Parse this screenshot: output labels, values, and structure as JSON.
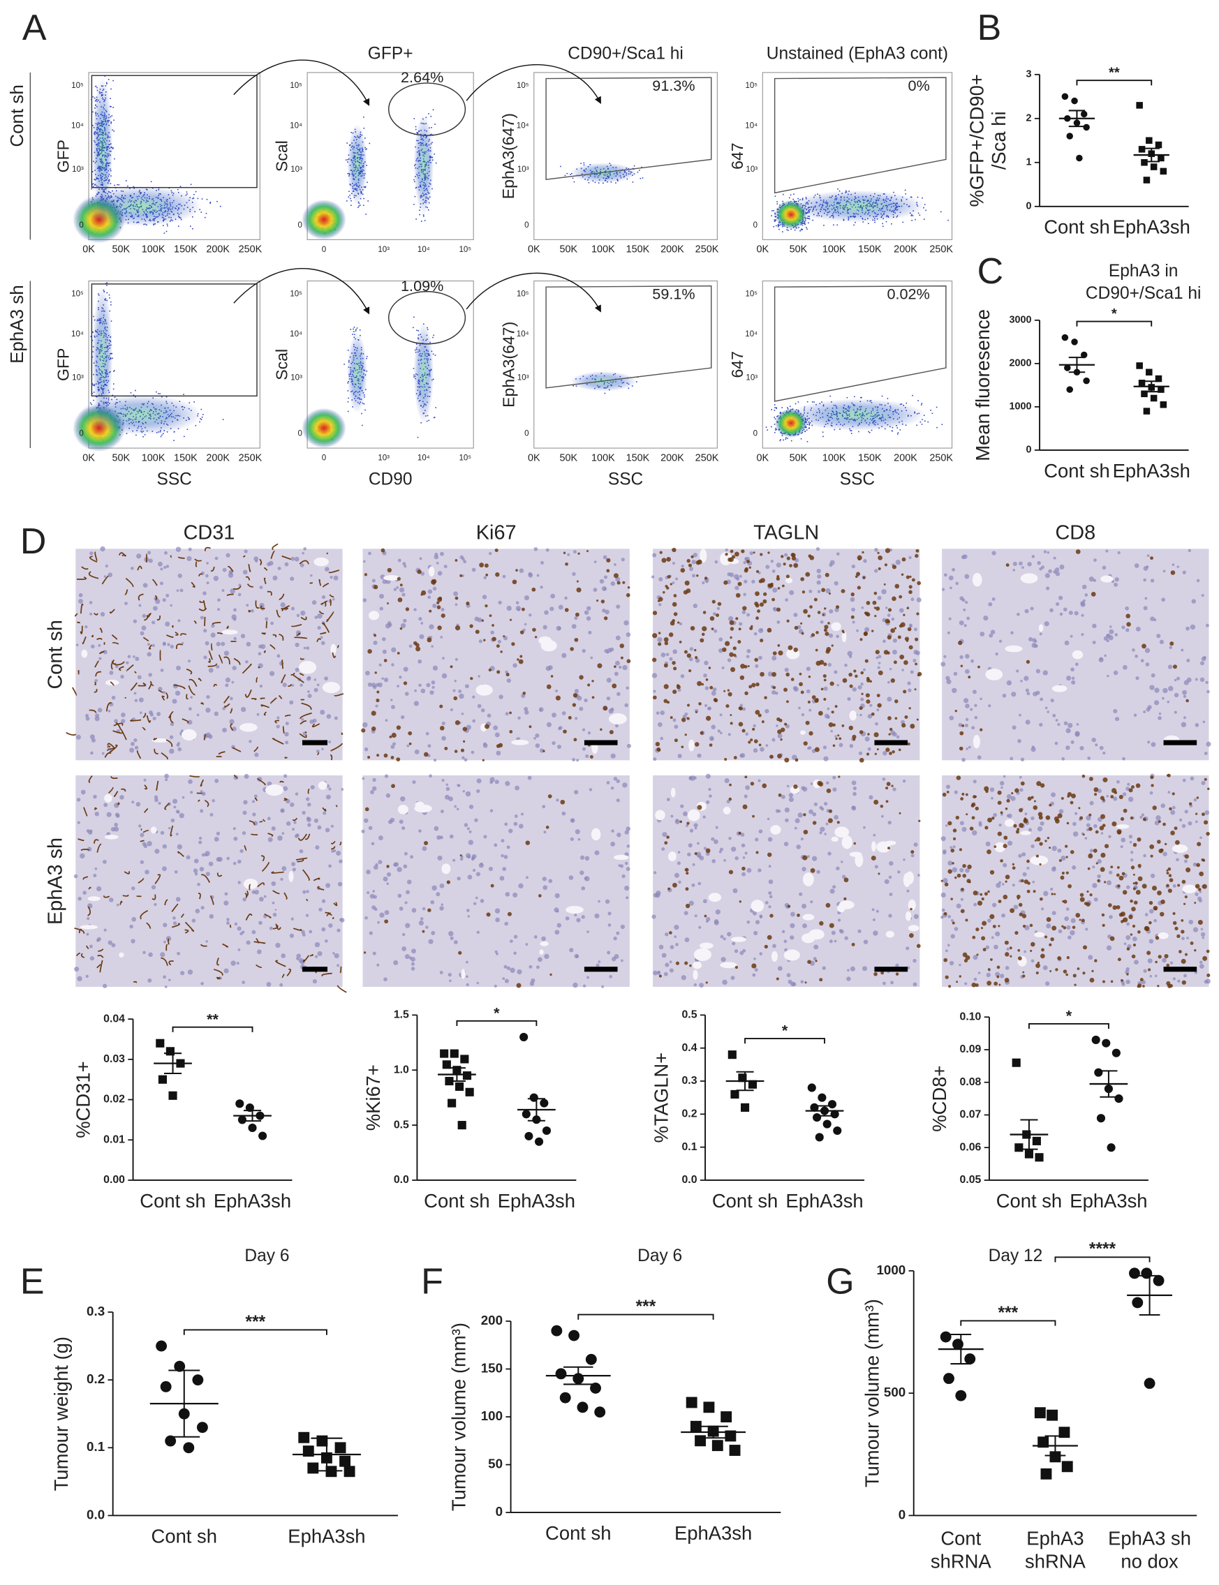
{
  "panel_labels": [
    "A",
    "B",
    "C",
    "D",
    "E",
    "F",
    "G"
  ],
  "flow": {
    "column_titles": [
      "GFP+",
      "CD90+/Sca1 hi",
      "Unstained (EphA3 cont)"
    ],
    "row_labels": [
      "Cont sh",
      "EphA3 sh"
    ],
    "y_labels": [
      "GFP",
      "Scal",
      "EphA3(647)",
      "647"
    ],
    "x_labels": [
      "SSC",
      "CD90",
      "SSC",
      "SSC"
    ],
    "gates": [
      [
        "2.64%",
        "91.3%",
        "0%"
      ],
      [
        "1.09%",
        "59.1%",
        "0.02%"
      ]
    ],
    "linear_ticks": [
      "0K",
      "50K",
      "100K",
      "150K",
      "200K",
      "250K"
    ],
    "log_ticks": [
      "0",
      "10³",
      "10⁴",
      "10⁵"
    ]
  },
  "histology": {
    "columns": [
      "CD31",
      "Ki67",
      "TAGLN",
      "CD8"
    ],
    "rows": [
      "Cont sh",
      "EphA3 sh"
    ]
  },
  "chart_data": [
    {
      "type": "dot",
      "ylabel": [
        "%GFP+/CD90+",
        "/Sca hi"
      ],
      "categories": [
        "Cont sh",
        "EphA3sh"
      ],
      "markers": [
        "circle",
        "square"
      ],
      "points": [
        [
          2.5,
          2.4,
          2.1,
          2.0,
          1.9,
          1.8,
          1.6,
          1.1
        ],
        [
          2.3,
          1.5,
          1.4,
          1.3,
          1.2,
          1.1,
          1.0,
          0.9,
          0.8,
          0.6
        ]
      ],
      "mean": [
        2.0,
        1.17
      ],
      "error": [
        0.18,
        0.15
      ],
      "ylim": [
        0,
        3
      ],
      "yticks": [
        0,
        1,
        2,
        3
      ],
      "annotations": [
        "**"
      ]
    },
    {
      "type": "dot",
      "title": [
        "EphA3 in",
        "CD90+/Sca1 hi"
      ],
      "ylabel": [
        "Mean fluoresence"
      ],
      "categories": [
        "Cont sh",
        "EphA3sh"
      ],
      "markers": [
        "circle",
        "square"
      ],
      "points": [
        [
          2600,
          2500,
          2200,
          1900,
          1800,
          1600,
          1400
        ],
        [
          1950,
          1800,
          1650,
          1550,
          1450,
          1400,
          1300,
          1200,
          1050,
          900
        ]
      ],
      "mean": [
        1970,
        1470
      ],
      "error": [
        170,
        120
      ],
      "ylim": [
        0,
        3000
      ],
      "yticks": [
        0,
        1000,
        2000,
        3000
      ],
      "annotations": [
        "*"
      ]
    },
    {
      "type": "dot",
      "ylabel": [
        "%CD31+"
      ],
      "categories": [
        "Cont sh",
        "EphA3sh"
      ],
      "markers": [
        "square",
        "circle"
      ],
      "points": [
        [
          0.034,
          0.032,
          0.029,
          0.025,
          0.021
        ],
        [
          0.019,
          0.018,
          0.016,
          0.015,
          0.013,
          0.011
        ]
      ],
      "mean": [
        0.029,
        0.016
      ],
      "error": [
        0.0025,
        0.0013
      ],
      "ylim": [
        0,
        0.04
      ],
      "yticks": [
        {
          "value": 0,
          "label": "0.00"
        },
        0.01,
        0.02,
        0.03,
        0.04
      ],
      "annotations": [
        "**"
      ]
    },
    {
      "type": "dot",
      "ylabel": [
        "%Ki67+"
      ],
      "categories": [
        "Cont sh",
        "EphA3sh"
      ],
      "markers": [
        "square",
        "circle"
      ],
      "points": [
        [
          1.15,
          1.15,
          1.1,
          1.05,
          1.0,
          0.95,
          0.9,
          0.85,
          0.8,
          0.7,
          0.5
        ],
        [
          1.3,
          0.75,
          0.7,
          0.6,
          0.55,
          0.45,
          0.4,
          0.35
        ]
      ],
      "mean": [
        0.96,
        0.64
      ],
      "error": [
        0.06,
        0.1
      ],
      "ylim": [
        0,
        1.5
      ],
      "yticks": [
        {
          "value": 0,
          "label": "0.0"
        },
        0.5,
        {
          "value": 1,
          "label": "1.0"
        },
        1.5
      ],
      "annotations": [
        "*"
      ]
    },
    {
      "type": "dot",
      "ylabel": [
        "%TAGLN+"
      ],
      "categories": [
        "Cont sh",
        "EphA3sh"
      ],
      "markers": [
        "square",
        "circle"
      ],
      "points": [
        [
          0.38,
          0.31,
          0.29,
          0.26,
          0.22
        ],
        [
          0.28,
          0.25,
          0.23,
          0.22,
          0.21,
          0.2,
          0.19,
          0.17,
          0.15,
          0.13
        ]
      ],
      "mean": [
        0.3,
        0.21
      ],
      "error": [
        0.028,
        0.015
      ],
      "ylim": [
        0,
        0.5
      ],
      "yticks": [
        {
          "value": 0,
          "label": "0.0"
        },
        0.1,
        0.2,
        0.3,
        0.4,
        0.5
      ],
      "annotations": [
        "*"
      ]
    },
    {
      "type": "dot",
      "ylabel": [
        "%CD8+"
      ],
      "categories": [
        "Cont sh",
        "EphA3sh"
      ],
      "markers": [
        "square",
        "circle"
      ],
      "points": [
        [
          0.086,
          0.064,
          0.062,
          0.06,
          0.058,
          0.057
        ],
        [
          0.093,
          0.092,
          0.089,
          0.083,
          0.078,
          0.075,
          0.069,
          0.06
        ]
      ],
      "mean": [
        0.064,
        0.0795
      ],
      "error": [
        0.0045,
        0.004
      ],
      "ylim": [
        0.05,
        0.1
      ],
      "yticks": [
        0.05,
        0.06,
        0.07,
        0.08,
        0.09,
        {
          "value": 0.1,
          "label": "0.10"
        }
      ],
      "annotations": [
        "*"
      ]
    },
    {
      "type": "dot",
      "title": [
        "Day 6"
      ],
      "ylabel": [
        "Tumour weight (g)"
      ],
      "categories": [
        "Cont sh",
        "EphA3sh"
      ],
      "markers": [
        "circle",
        "square"
      ],
      "points": [
        [
          0.25,
          0.22,
          0.2,
          0.19,
          0.15,
          0.13,
          0.11,
          0.1
        ],
        [
          0.115,
          0.11,
          0.1,
          0.095,
          0.085,
          0.08,
          0.07,
          0.065,
          0.065
        ]
      ],
      "mean": [
        0.165,
        0.09
      ],
      "error": [
        0.049,
        0.024
      ],
      "ylim": [
        0,
        0.3
      ],
      "yticks": [
        {
          "value": 0,
          "label": "0.0"
        },
        0.1,
        0.2,
        0.3
      ],
      "annotations": [
        "***"
      ]
    },
    {
      "type": "dot",
      "title": [
        "Day 6"
      ],
      "ylabel": [
        "Tumour volume (mm³)"
      ],
      "categories": [
        "Cont sh",
        "EphA3sh"
      ],
      "markers": [
        "circle",
        "square"
      ],
      "points": [
        [
          190,
          185,
          160,
          145,
          140,
          130,
          120,
          110,
          105
        ],
        [
          115,
          110,
          100,
          90,
          85,
          80,
          75,
          70,
          65
        ]
      ],
      "mean": [
        143,
        84
      ],
      "error": [
        9,
        6
      ],
      "ylim": [
        0,
        200
      ],
      "yticks": [
        0,
        50,
        100,
        150,
        200
      ],
      "annotations": [
        "***"
      ]
    },
    {
      "type": "dot",
      "title": [
        "Day 12"
      ],
      "ylabel": [
        "Tumour volume (mm³)"
      ],
      "categories": [
        [
          "Cont",
          "shRNA"
        ],
        [
          "EphA3",
          "shRNA"
        ],
        [
          "EphA3 sh",
          "no dox"
        ]
      ],
      "markers": [
        "circle",
        "square",
        "circle"
      ],
      "points": [
        [
          730,
          700,
          640,
          560,
          490
        ],
        [
          420,
          410,
          340,
          300,
          240,
          200,
          170
        ],
        [
          990,
          990,
          960,
          870,
          540
        ]
      ],
      "mean": [
        680,
        285,
        900
      ],
      "error": [
        60,
        40,
        80
      ],
      "ylim": [
        0,
        1000
      ],
      "yticks": [
        0,
        500,
        1000
      ],
      "annotations": [
        "***",
        "****"
      ]
    }
  ]
}
